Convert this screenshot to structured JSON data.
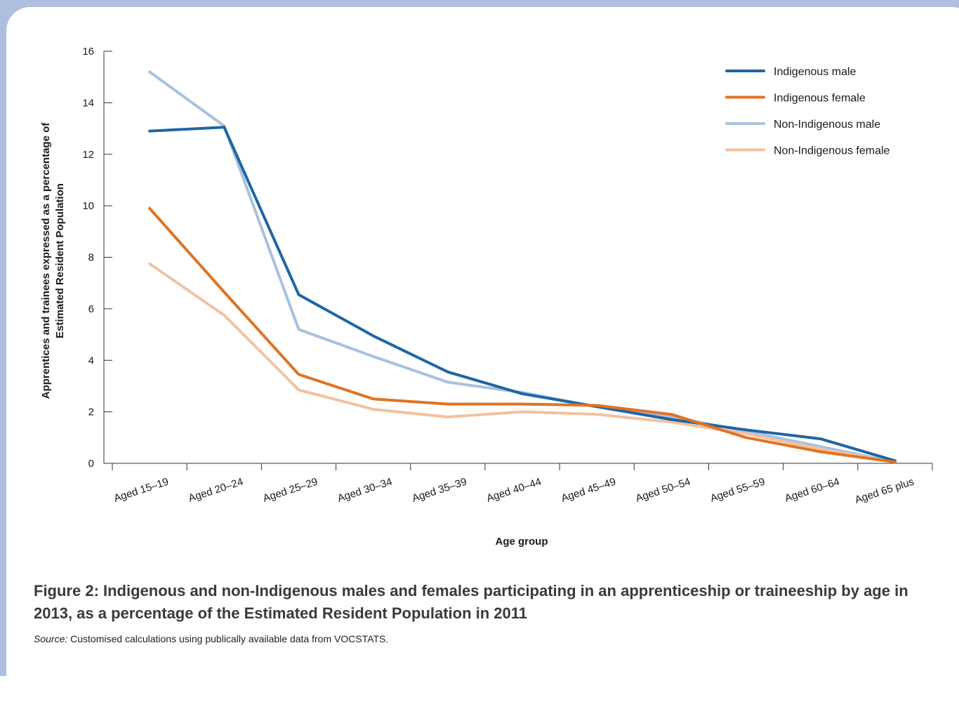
{
  "chart_data": {
    "type": "line",
    "categories": [
      "Aged 15–19",
      "Aged 20–24",
      "Aged 25–29",
      "Aged 30–34",
      "Aged 35–39",
      "Aged 40–44",
      "Aged 45–49",
      "Aged 50–54",
      "Aged 55–59",
      "Aged 60–64",
      "Aged 65 plus"
    ],
    "series": [
      {
        "name": "Indigenous male",
        "color": "#1f66a3",
        "values": [
          12.9,
          13.05,
          6.55,
          4.95,
          3.55,
          2.7,
          2.2,
          1.7,
          1.3,
          0.95,
          0.1
        ]
      },
      {
        "name": "Indigenous female",
        "color": "#e07323",
        "values": [
          9.9,
          6.65,
          3.45,
          2.5,
          2.3,
          2.3,
          2.25,
          1.9,
          1.0,
          0.45,
          0.05
        ]
      },
      {
        "name": "Non-Indigenous male",
        "color": "#a8c1de",
        "values": [
          15.2,
          13.1,
          5.2,
          4.15,
          3.15,
          2.75,
          2.2,
          1.8,
          1.25,
          0.65,
          0.05
        ]
      },
      {
        "name": "Non-Indigenous female",
        "color": "#f4c19f",
        "values": [
          7.75,
          5.75,
          2.85,
          2.1,
          1.8,
          2.0,
          1.9,
          1.6,
          1.15,
          0.55,
          0.05
        ]
      }
    ],
    "ylim": [
      0,
      16
    ],
    "yticks": [
      "0",
      "2",
      "4",
      "6",
      "8",
      "10",
      "12",
      "14",
      "16"
    ],
    "xlabel": "Age group",
    "ylabel": "Apprentices and trainees expressed as a percentage of Estimated Resident Population",
    "legend_position": "top-right",
    "grid": false
  },
  "caption": {
    "title": "Figure 2: Indigenous and non-Indigenous males and females participating in an apprenticeship or traineeship by age in 2013, as a percentage of the Estimated Resident Population in 2011",
    "source_label": "Source:",
    "source_text": " Customised calculations using publically available data from VOCSTATS."
  }
}
